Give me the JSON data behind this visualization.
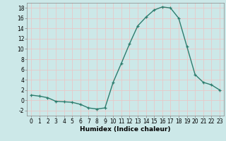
{
  "x": [
    0,
    1,
    2,
    3,
    4,
    5,
    6,
    7,
    8,
    9,
    10,
    11,
    12,
    13,
    14,
    15,
    16,
    17,
    18,
    19,
    20,
    21,
    22,
    23
  ],
  "y": [
    1,
    0.8,
    0.5,
    -0.2,
    -0.3,
    -0.4,
    -0.8,
    -1.5,
    -1.7,
    -1.5,
    3.5,
    7.2,
    11.0,
    14.5,
    16.2,
    17.6,
    18.2,
    18.0,
    16.0,
    10.5,
    5.0,
    3.5,
    3.0,
    2.0
  ],
  "line_color": "#2d7d6e",
  "marker": "+",
  "marker_size": 3.5,
  "xlabel": "Humidex (Indice chaleur)",
  "xlim": [
    -0.5,
    23.5
  ],
  "ylim": [
    -3,
    19
  ],
  "yticks": [
    -2,
    0,
    2,
    4,
    6,
    8,
    10,
    12,
    14,
    16,
    18
  ],
  "xticks": [
    0,
    1,
    2,
    3,
    4,
    5,
    6,
    7,
    8,
    9,
    10,
    11,
    12,
    13,
    14,
    15,
    16,
    17,
    18,
    19,
    20,
    21,
    22,
    23
  ],
  "bg_color": "#cce8e8",
  "grid_color": "#e8c8c8",
  "tick_fontsize": 5.5,
  "xlabel_fontsize": 6.5,
  "line_width": 1.0
}
